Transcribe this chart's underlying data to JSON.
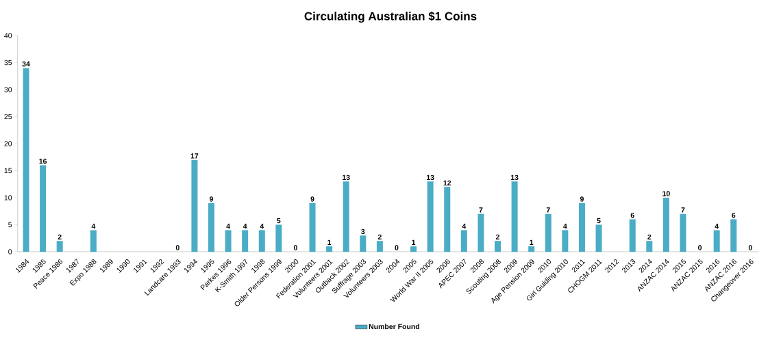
{
  "chart_data": {
    "type": "bar",
    "title": "Circulating Australian $1 Coins",
    "categories": [
      "1984",
      "1985",
      "Peace 1986",
      "1987",
      "Expo 1988",
      "1989",
      "1990",
      "1991",
      "1992",
      "Landcare 1993",
      "1994",
      "1995",
      "Parkes 1996",
      "K-Smith 1997",
      "1998",
      "Older Persons 1999",
      "2000",
      "Federation 2001",
      "Volunteers 2001",
      "Outback 2002",
      "Suffrage 2003",
      "Volunteers 2003",
      "2004",
      "2005",
      "World War II 2005",
      "2006",
      "APEC 2007",
      "2008",
      "Scouting 2008",
      "2009",
      "Age Pension 2009",
      "2010",
      "Girl Guiding 2010",
      "2011",
      "CHOGM 2011",
      "2012",
      "2013",
      "2014",
      "ANZAC 2014",
      "2015",
      "ANZAC 2015",
      "2016",
      "ANZAC 2016",
      "Changeover 2016"
    ],
    "series": [
      {
        "name": "Number Found",
        "color": "#4bacc6",
        "values": [
          34,
          16,
          2,
          null,
          4,
          null,
          null,
          null,
          null,
          0,
          17,
          9,
          4,
          4,
          4,
          5,
          0,
          9,
          1,
          13,
          3,
          2,
          0,
          1,
          13,
          12,
          4,
          7,
          2,
          13,
          1,
          7,
          4,
          9,
          5,
          null,
          6,
          2,
          10,
          7,
          0,
          4,
          6,
          0
        ]
      }
    ],
    "ylim": [
      0,
      40
    ],
    "yticks": [
      0,
      5,
      10,
      15,
      20,
      25,
      30,
      35,
      40
    ],
    "data_labels": true,
    "legend": "bottom",
    "grid": false
  }
}
